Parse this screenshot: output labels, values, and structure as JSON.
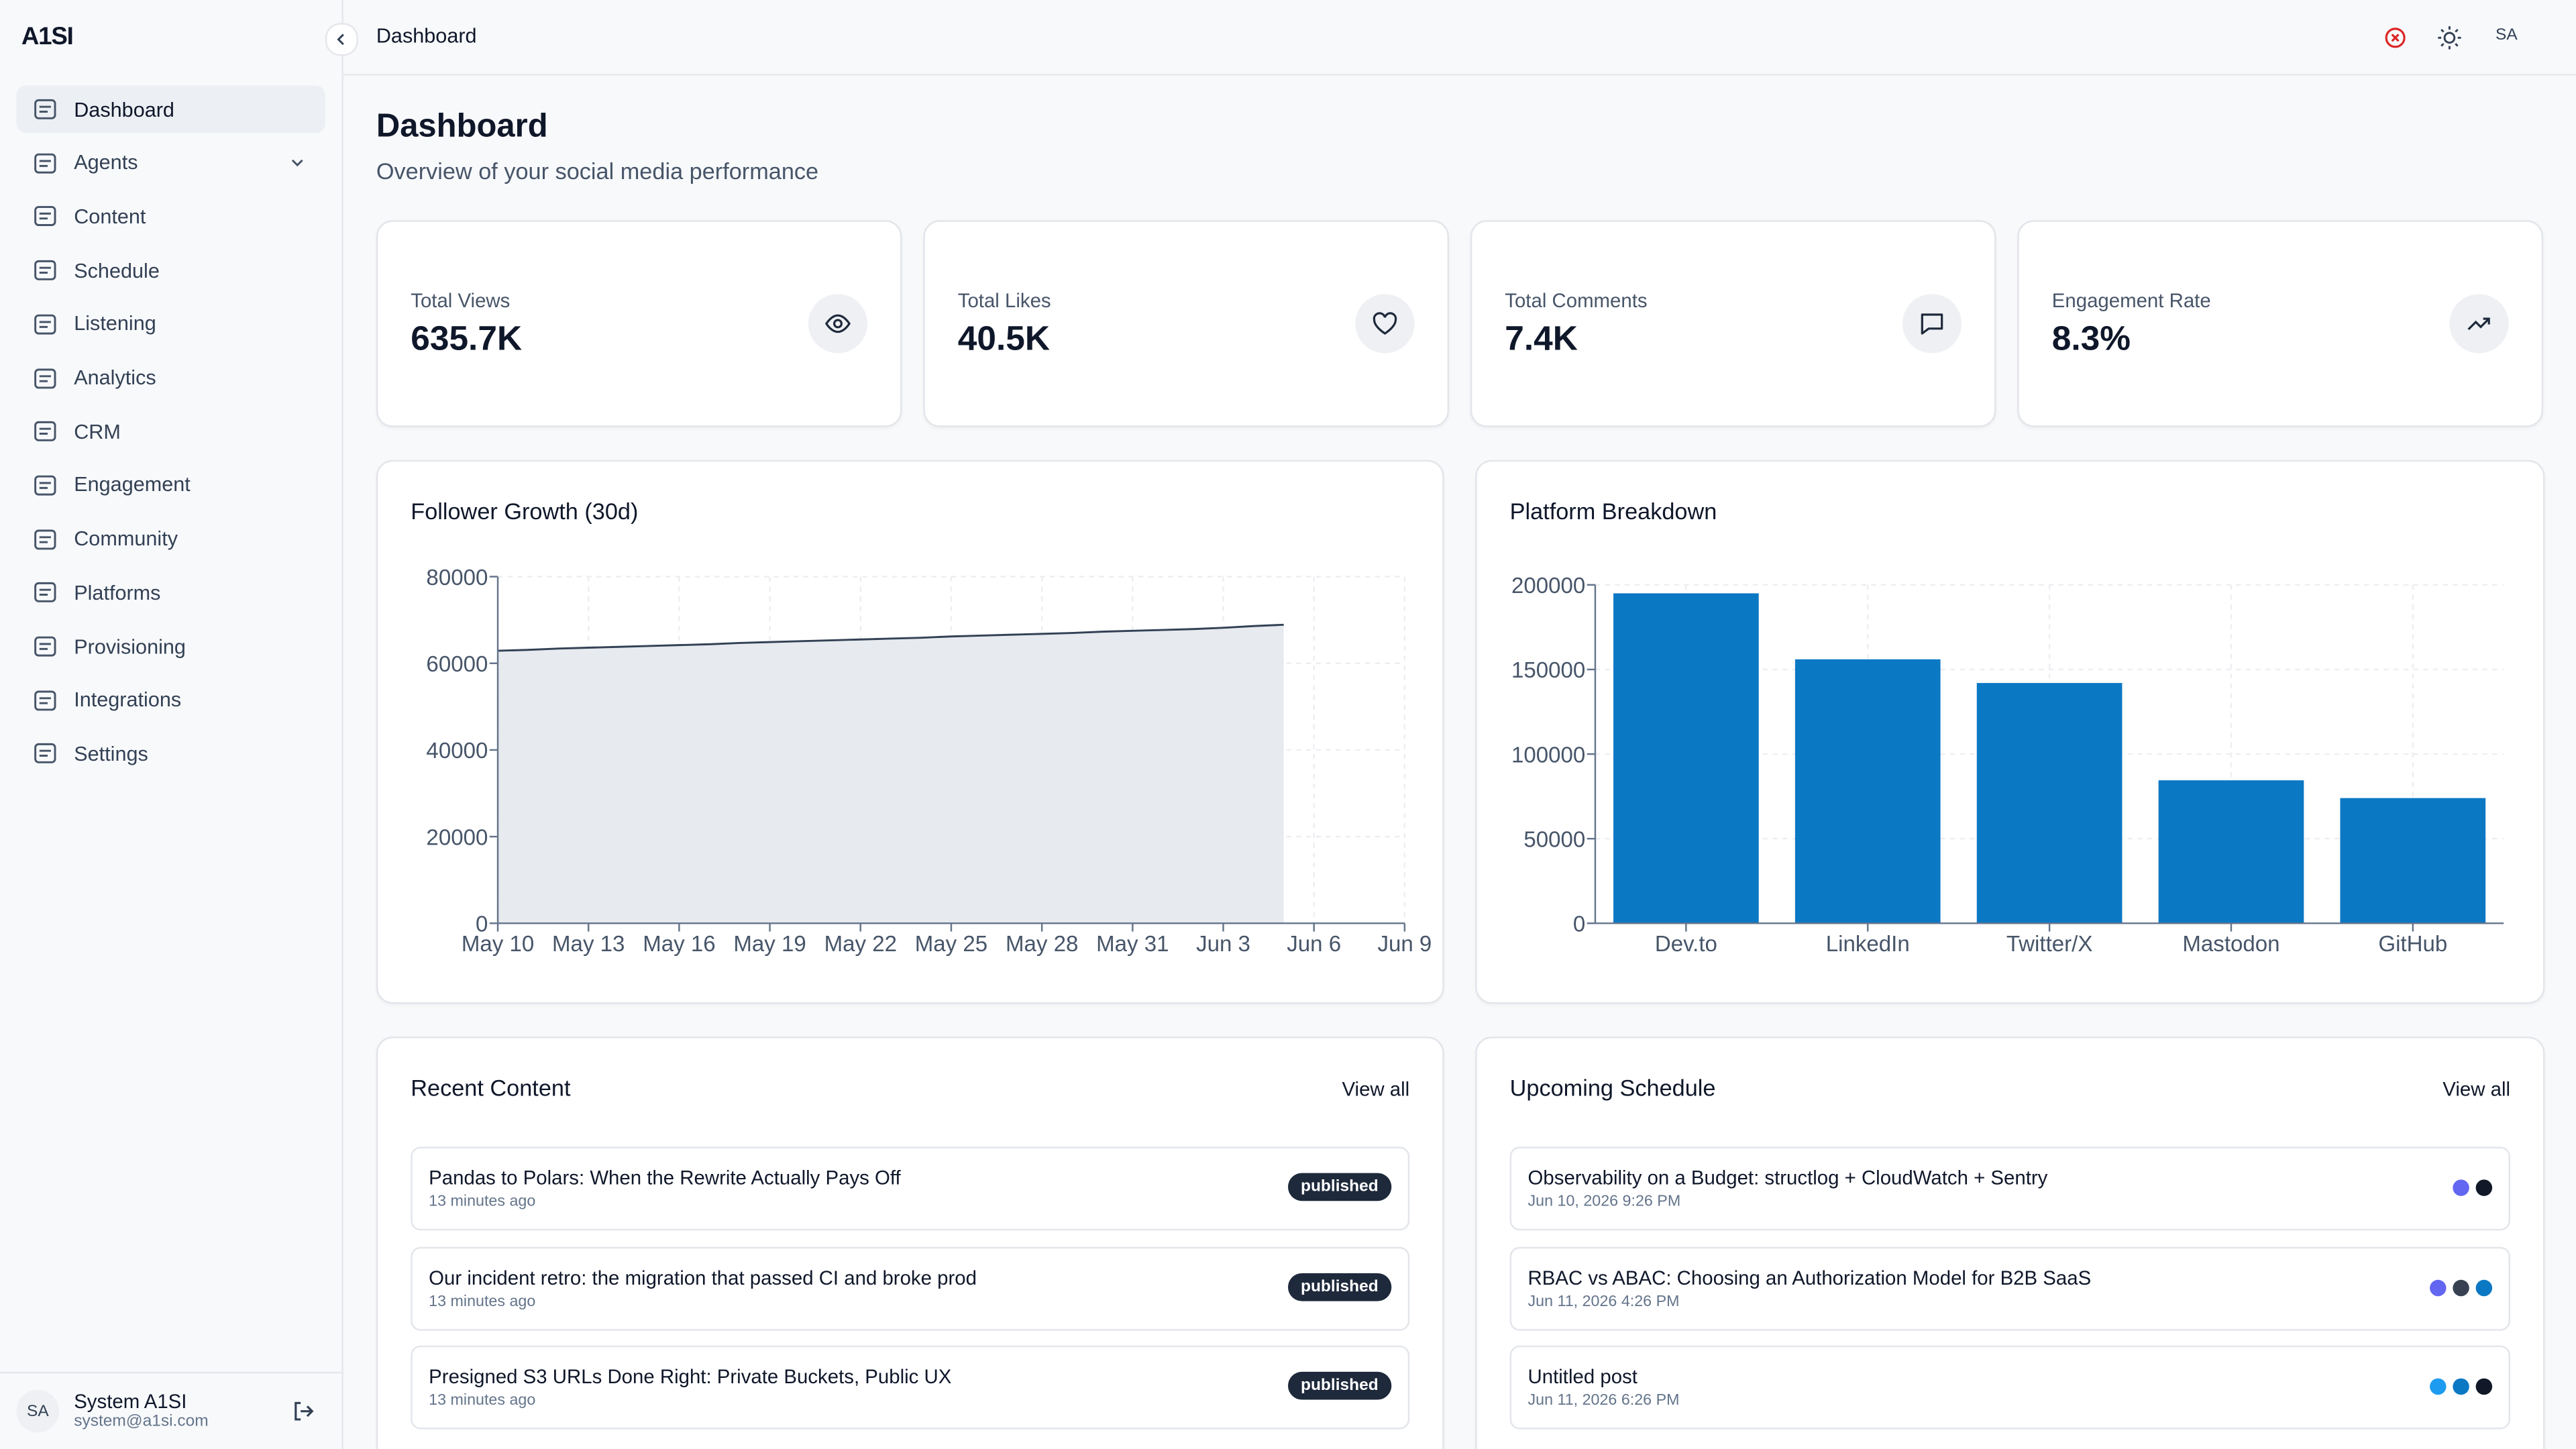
{
  "sidebar": {
    "brand": "A1SI",
    "nav": [
      "Dashboard",
      "Agents",
      "Content",
      "Schedule",
      "Listening",
      "Analytics",
      "CRM",
      "Engagement",
      "Community",
      "Platforms",
      "Provisioning",
      "Integrations",
      "Settings"
    ],
    "user": {
      "initials": "SA",
      "name": "System A1SI",
      "email": "system@a1si.com"
    }
  },
  "header": {
    "title": "Dashboard",
    "avatar": "SA"
  },
  "page": {
    "title": "Dashboard",
    "subtitle": "Overview of your social media performance"
  },
  "stats": [
    {
      "label": "Total Views",
      "value": "635.7K"
    },
    {
      "label": "Total Likes",
      "value": "40.5K"
    },
    {
      "label": "Total Comments",
      "value": "7.4K"
    },
    {
      "label": "Engagement Rate",
      "value": "8.3%"
    }
  ],
  "chart_data": [
    {
      "type": "area",
      "title": "Follower Growth (30d)",
      "color": "#334155",
      "fill": "#e7eaee",
      "categories": [
        "May 10",
        null,
        null,
        "May 13",
        null,
        null,
        "May 16",
        null,
        null,
        "May 19",
        null,
        null,
        "May 22",
        null,
        null,
        "May 25",
        null,
        null,
        "May 28",
        null,
        null,
        "May 31",
        null,
        null,
        "Jun 3",
        null,
        null,
        "Jun 6",
        null,
        null,
        "Jun 9"
      ],
      "values": [
        62900,
        63100,
        63400,
        63600,
        63800,
        64000,
        64200,
        64400,
        64700,
        64900,
        65100,
        65300,
        65500,
        65700,
        65900,
        66200,
        66400,
        66600,
        66800,
        67000,
        67300,
        67500,
        67700,
        67900,
        68200,
        68600,
        68900,
        null,
        null,
        null,
        null
      ],
      "ylim": [
        0,
        80000
      ],
      "yticks": [
        0,
        20000,
        40000,
        60000,
        80000
      ],
      "grid": true
    },
    {
      "type": "bar",
      "title": "Platform Breakdown",
      "color": "#0b78c4",
      "categories": [
        "Dev.to",
        "LinkedIn",
        "Twitter/X",
        "Mastodon",
        "GitHub"
      ],
      "values": [
        195000,
        156000,
        142000,
        84500,
        74000
      ],
      "ylim": [
        0,
        200000
      ],
      "yticks": [
        0,
        50000,
        100000,
        150000,
        200000
      ],
      "grid": true
    }
  ],
  "recent": {
    "title": "Recent Content",
    "link": "View all",
    "items": [
      {
        "title": "Pandas to Polars: When the Rewrite Actually Pays Off",
        "time": "13 minutes ago",
        "status": "published"
      },
      {
        "title": "Our incident retro: the migration that passed CI and broke prod",
        "time": "13 minutes ago",
        "status": "published"
      },
      {
        "title": "Presigned S3 URLs Done Right: Private Buckets, Public UX",
        "time": "13 minutes ago",
        "status": "published"
      }
    ]
  },
  "schedule": {
    "title": "Upcoming Schedule",
    "link": "View all",
    "items": [
      {
        "title": "Observability on a Budget: structlog + CloudWatch + Sentry",
        "time": "Jun 10, 2026 9:26 PM",
        "dots": [
          "#6366f1",
          "#111827"
        ]
      },
      {
        "title": "RBAC vs ABAC: Choosing an Authorization Model for B2B SaaS",
        "time": "Jun 11, 2026 4:26 PM",
        "dots": [
          "#6366f1",
          "#374151",
          "#0b78c4"
        ]
      },
      {
        "title": "Untitled post",
        "time": "Jun 11, 2026 6:26 PM",
        "dots": [
          "#1d9bf0",
          "#0b78c4",
          "#111827"
        ]
      }
    ]
  }
}
